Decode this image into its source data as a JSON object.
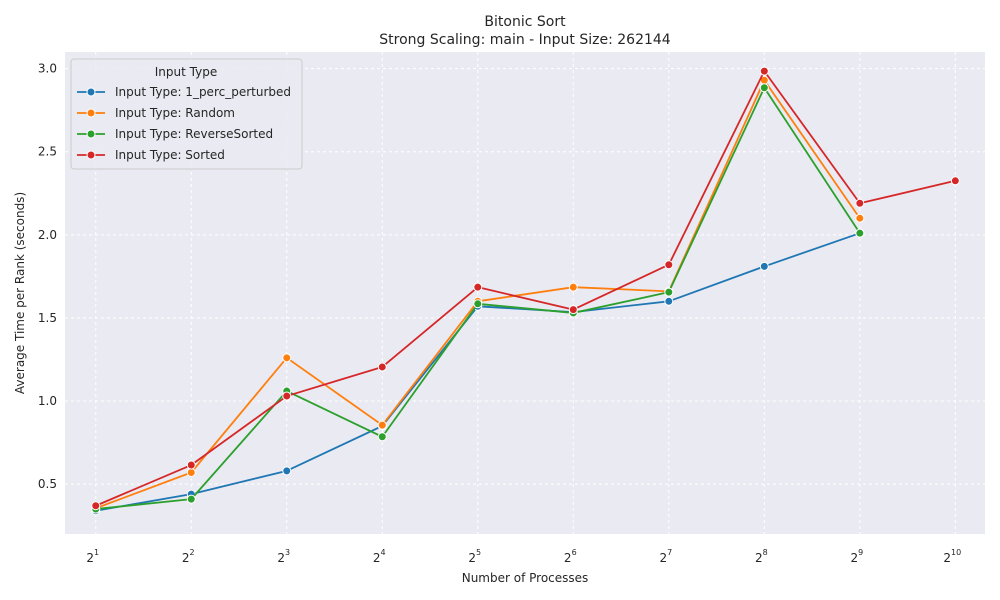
{
  "chart_data": {
    "type": "line",
    "title": "Bitonic Sort",
    "subtitle": "Strong Scaling: main - Input Size: 262144",
    "xlabel": "Number of Processes",
    "ylabel": "Average Time per Rank (seconds)",
    "x_scale": "log2",
    "x": [
      2,
      4,
      8,
      16,
      32,
      64,
      128,
      256,
      512,
      1024
    ],
    "x_tick_labels": [
      {
        "base": "2",
        "exp": "1"
      },
      {
        "base": "2",
        "exp": "2"
      },
      {
        "base": "2",
        "exp": "3"
      },
      {
        "base": "2",
        "exp": "4"
      },
      {
        "base": "2",
        "exp": "5"
      },
      {
        "base": "2",
        "exp": "6"
      },
      {
        "base": "2",
        "exp": "7"
      },
      {
        "base": "2",
        "exp": "8"
      },
      {
        "base": "2",
        "exp": "9"
      },
      {
        "base": "2",
        "exp": "10"
      }
    ],
    "xlim": [
      1.6,
      1270
    ],
    "ylim": [
      0.2,
      3.1
    ],
    "y_ticks": [
      "0.5",
      "1.0",
      "1.5",
      "2.0",
      "2.5",
      "3.0"
    ],
    "grid": true,
    "legend": {
      "title": "Input Type",
      "placement": "top-left"
    },
    "series": [
      {
        "name": "Input Type: 1_perc_perturbed",
        "color": "#1f77b4",
        "values": [
          0.34,
          0.44,
          0.58,
          0.85,
          1.57,
          1.535,
          1.6,
          1.81,
          2.01,
          null
        ]
      },
      {
        "name": "Input Type: Random",
        "color": "#ff7f0e",
        "values": [
          0.355,
          0.57,
          1.26,
          0.855,
          1.6,
          1.685,
          1.66,
          2.93,
          2.1,
          null
        ]
      },
      {
        "name": "Input Type: ReverseSorted",
        "color": "#2ca02c",
        "values": [
          0.35,
          0.41,
          1.06,
          0.785,
          1.585,
          1.53,
          1.655,
          2.885,
          2.01,
          null
        ]
      },
      {
        "name": "Input Type: Sorted",
        "color": "#d62728",
        "values": [
          0.37,
          0.615,
          1.03,
          1.205,
          1.685,
          1.55,
          1.82,
          2.985,
          2.19,
          2.325
        ]
      }
    ]
  }
}
